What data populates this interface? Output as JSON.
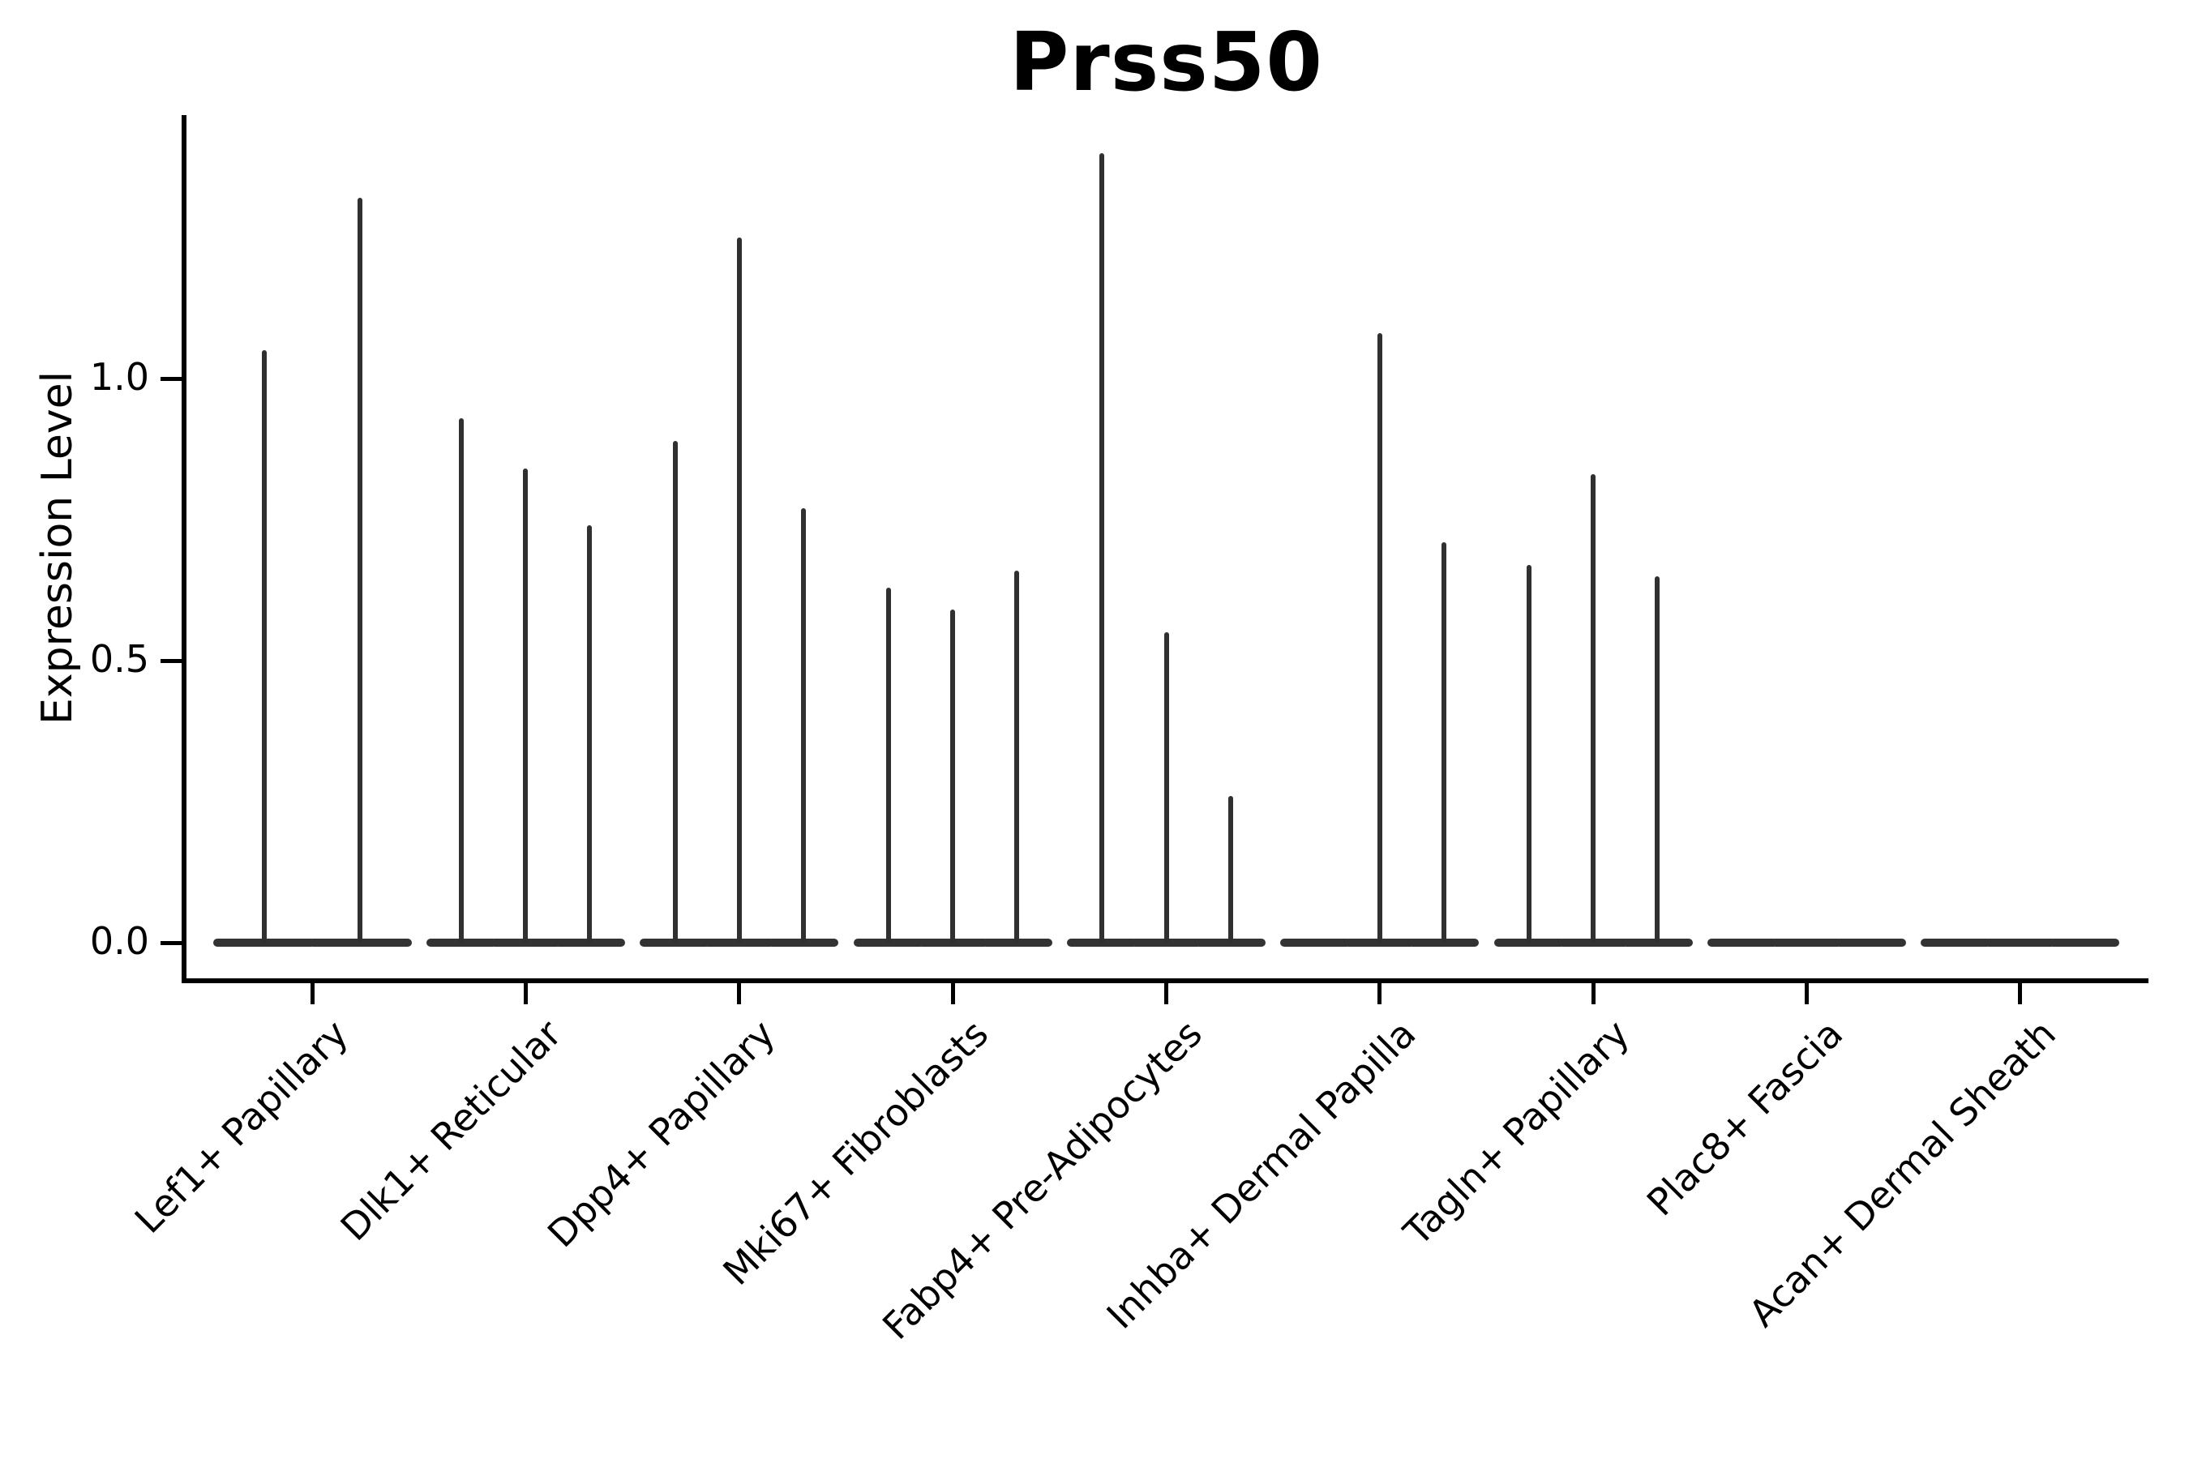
{
  "chart_data": {
    "type": "violin",
    "title": "Prss50",
    "xlabel": "",
    "ylabel": "Expression Level",
    "legend": false,
    "grid": false,
    "background": "#ffffff",
    "ink_color": "#303030",
    "axis_color": "#000000",
    "ylim": [
      -0.0675,
      1.467
    ],
    "xlim": [
      0.4,
      9.6
    ],
    "yticks": [
      {
        "value": 0.0,
        "label": "0.0"
      },
      {
        "value": 0.5,
        "label": "0.5"
      },
      {
        "value": 1.0,
        "label": "1.0"
      }
    ],
    "x_tick_rotation_degrees": 45,
    "violin_group_total_width_units": 0.9,
    "categories": [
      "Lef1+ Papillary",
      "Dlk1+ Reticular",
      "Dpp4+ Papillary",
      "Mki67+ Fibroblasts",
      "Fabp4+ Pre-Adipocytes",
      "Inhba+ Dermal Papilla",
      "Tagln+ Papillary",
      "Plac8+ Fascia",
      "Acan+ Dermal Sheath"
    ],
    "groups": [
      {
        "category": "Lef1+ Papillary",
        "x": 1,
        "violin_max_expression": [
          1.05,
          1.32
        ]
      },
      {
        "category": "Dlk1+ Reticular",
        "x": 2,
        "violin_max_expression": [
          0.93,
          0.84,
          0.74
        ]
      },
      {
        "category": "Dpp4+ Papillary",
        "x": 3,
        "violin_max_expression": [
          0.89,
          1.25,
          0.77
        ]
      },
      {
        "category": "Mki67+ Fibroblasts",
        "x": 4,
        "violin_max_expression": [
          0.63,
          0.59,
          0.66
        ]
      },
      {
        "category": "Fabp4+ Pre-Adipocytes",
        "x": 5,
        "violin_max_expression": [
          1.4,
          0.55,
          0.26
        ]
      },
      {
        "category": "Inhba+ Dermal Papilla",
        "x": 6,
        "violin_max_expression": [
          0.0,
          1.08,
          0.71
        ]
      },
      {
        "category": "Tagln+ Papillary",
        "x": 7,
        "violin_max_expression": [
          0.67,
          0.83,
          0.65
        ]
      },
      {
        "category": "Plac8+ Fascia",
        "x": 8,
        "violin_max_expression": [
          0.0,
          0.0,
          0.0
        ]
      },
      {
        "category": "Acan+ Dermal Sheath",
        "x": 9,
        "violin_max_expression": [
          0.0,
          0.0,
          0.0
        ]
      }
    ]
  }
}
